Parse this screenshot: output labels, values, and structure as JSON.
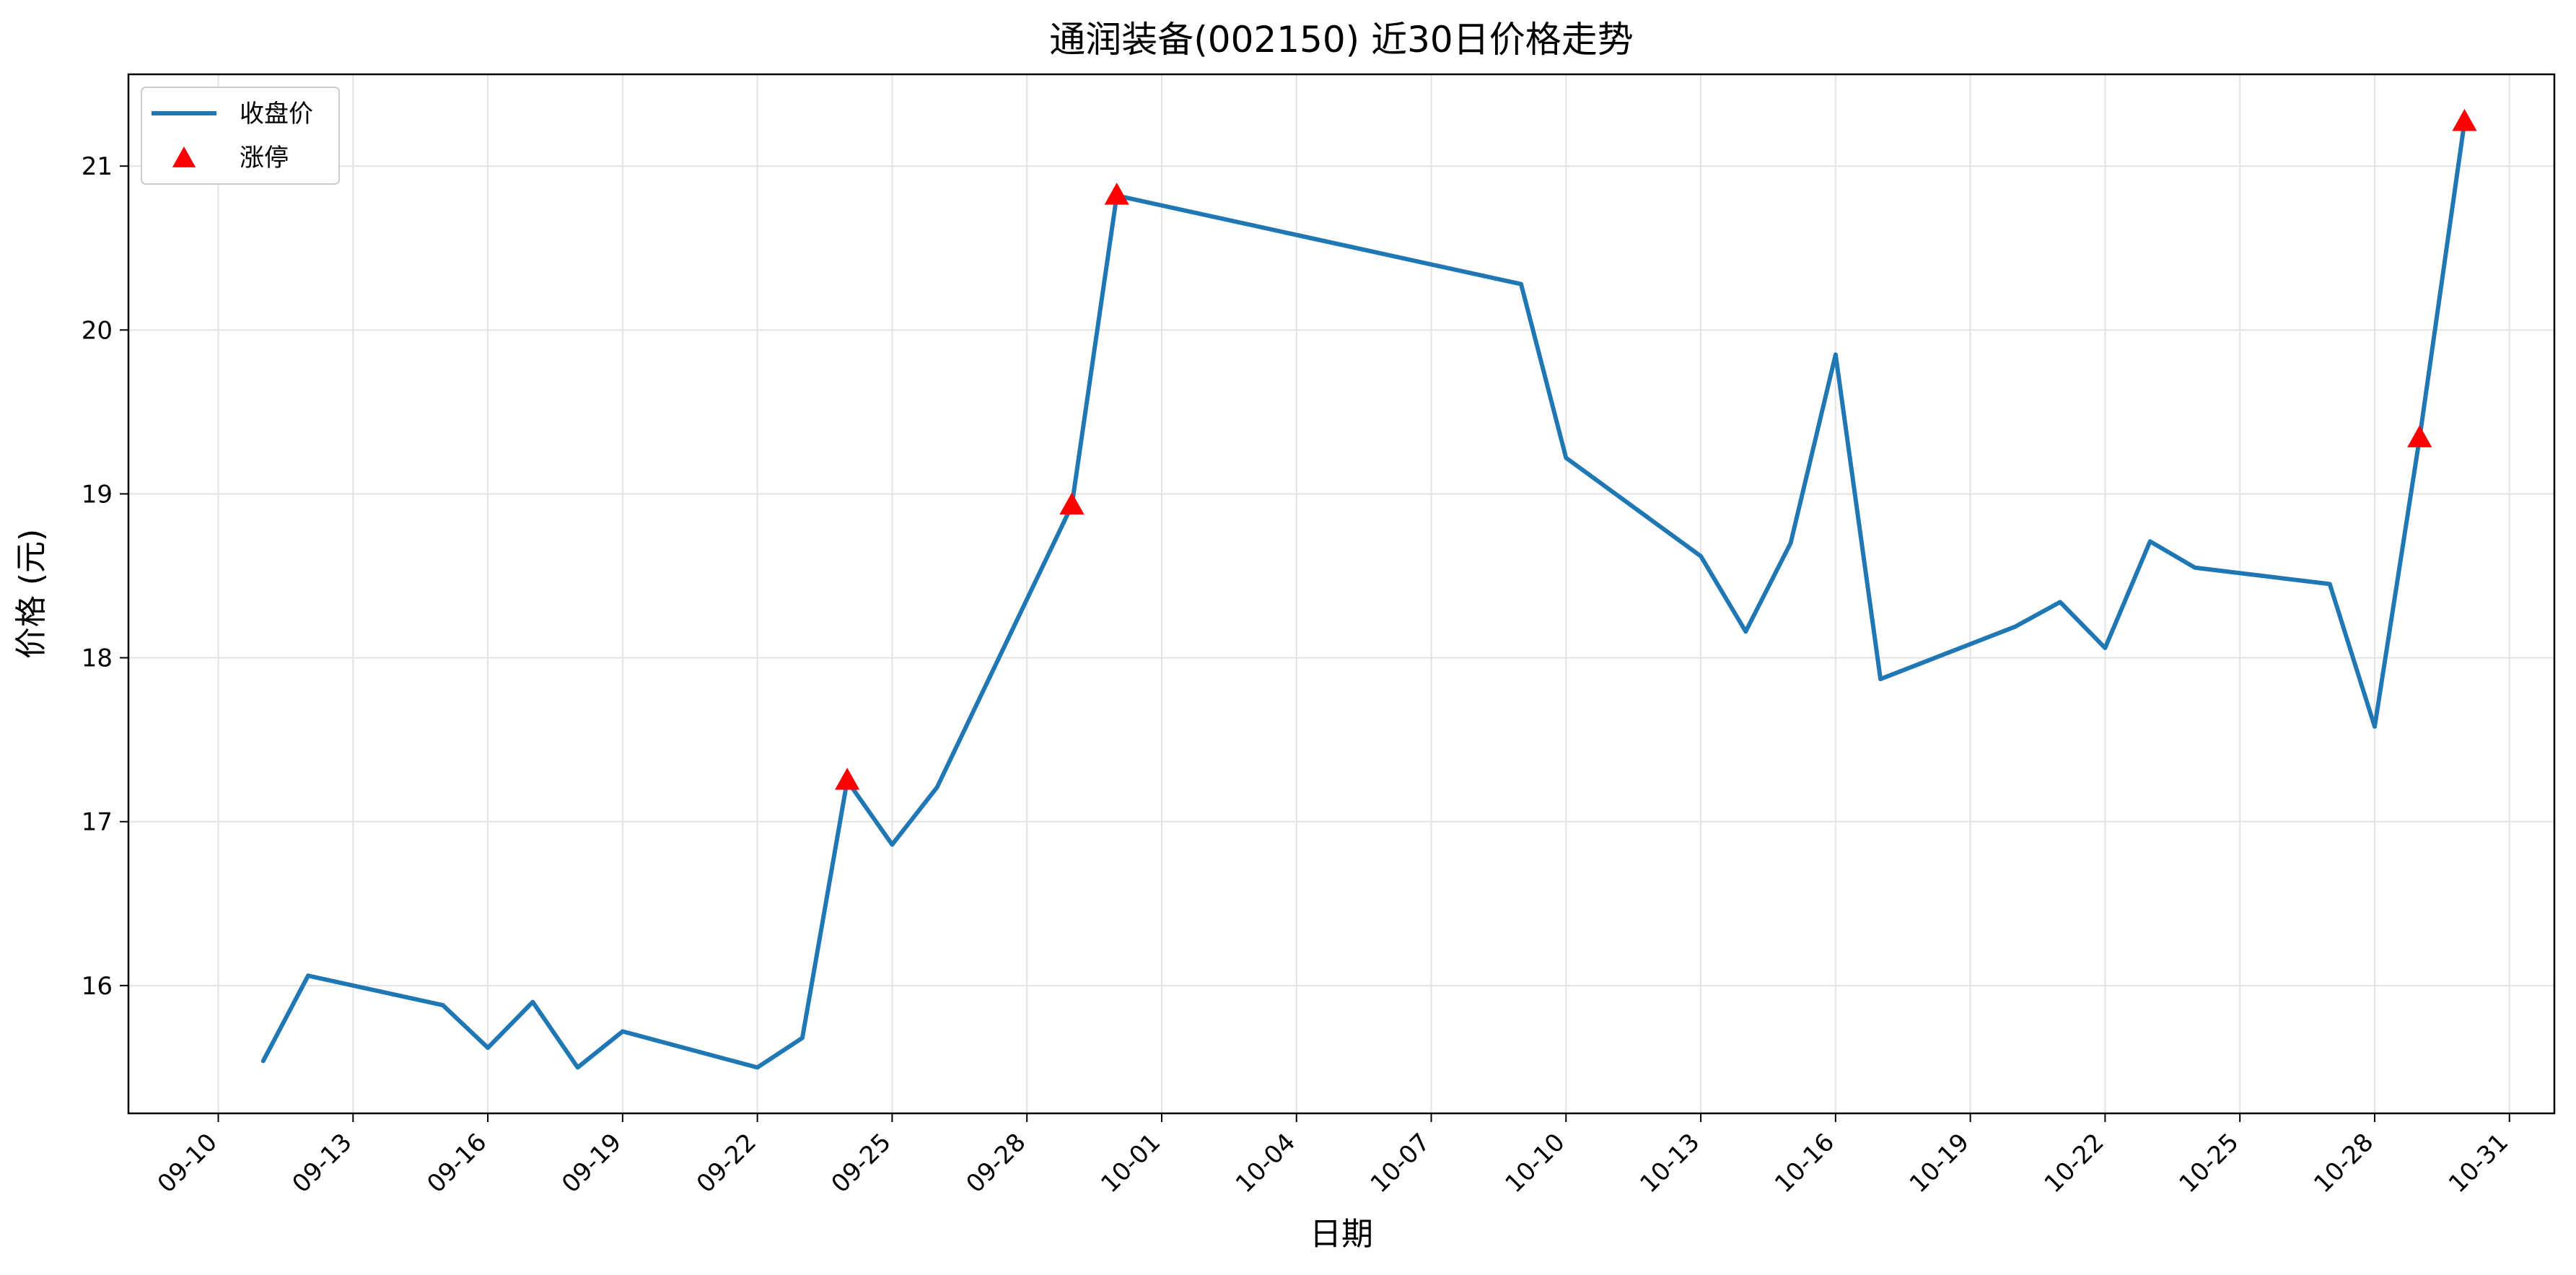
{
  "chart_data": {
    "type": "line",
    "title": "通润装备(002150) 近30日价格走势",
    "xlabel": "日期",
    "ylabel": "价格 (元)",
    "xlim": [
      "2024-09-08",
      "2024-11-01"
    ],
    "ylim": [
      15.22,
      21.56
    ],
    "grid": true,
    "legend_position": "top-left",
    "x_ticks": [
      "2024-09-10",
      "2024-09-13",
      "2024-09-16",
      "2024-09-19",
      "2024-09-22",
      "2024-09-25",
      "2024-09-28",
      "2024-10-01",
      "2024-10-04",
      "2024-10-07",
      "2024-10-10",
      "2024-10-13",
      "2024-10-16",
      "2024-10-19",
      "2024-10-22",
      "2024-10-25",
      "2024-10-28",
      "2024-10-31"
    ],
    "x_tick_labels": [
      "09-10",
      "09-13",
      "09-16",
      "09-19",
      "09-22",
      "09-25",
      "09-28",
      "10-01",
      "10-04",
      "10-07",
      "10-10",
      "10-13",
      "10-16",
      "10-19",
      "10-22",
      "10-25",
      "10-28",
      "10-31"
    ],
    "y_ticks": [
      16,
      17,
      18,
      19,
      20,
      21
    ],
    "y_tick_labels": [
      "16",
      "17",
      "18",
      "19",
      "20",
      "21"
    ],
    "series": [
      {
        "name": "收盘价",
        "kind": "line",
        "color": "#1f77b4",
        "points": [
          {
            "x": "2024-09-11",
            "y": 15.54
          },
          {
            "x": "2024-09-12",
            "y": 16.06
          },
          {
            "x": "2024-09-15",
            "y": 15.88
          },
          {
            "x": "2024-09-16",
            "y": 15.62
          },
          {
            "x": "2024-09-17",
            "y": 15.9
          },
          {
            "x": "2024-09-18",
            "y": 15.5
          },
          {
            "x": "2024-09-19",
            "y": 15.72
          },
          {
            "x": "2024-09-22",
            "y": 15.5
          },
          {
            "x": "2024-09-23",
            "y": 15.68
          },
          {
            "x": "2024-09-24",
            "y": 17.25
          },
          {
            "x": "2024-09-25",
            "y": 16.86
          },
          {
            "x": "2024-09-26",
            "y": 17.21
          },
          {
            "x": "2024-09-29",
            "y": 18.93
          },
          {
            "x": "2024-09-30",
            "y": 20.82
          },
          {
            "x": "2024-10-09",
            "y": 20.28
          },
          {
            "x": "2024-10-10",
            "y": 19.22
          },
          {
            "x": "2024-10-13",
            "y": 18.62
          },
          {
            "x": "2024-10-14",
            "y": 18.16
          },
          {
            "x": "2024-10-15",
            "y": 18.7
          },
          {
            "x": "2024-10-16",
            "y": 19.85
          },
          {
            "x": "2024-10-17",
            "y": 17.87
          },
          {
            "x": "2024-10-20",
            "y": 18.19
          },
          {
            "x": "2024-10-21",
            "y": 18.34
          },
          {
            "x": "2024-10-22",
            "y": 18.06
          },
          {
            "x": "2024-10-23",
            "y": 18.71
          },
          {
            "x": "2024-10-24",
            "y": 18.55
          },
          {
            "x": "2024-10-27",
            "y": 18.45
          },
          {
            "x": "2024-10-28",
            "y": 17.58
          },
          {
            "x": "2024-10-29",
            "y": 19.34
          },
          {
            "x": "2024-10-30",
            "y": 21.27
          }
        ]
      },
      {
        "name": "涨停",
        "kind": "scatter",
        "marker": "triangle",
        "color": "#ff0000",
        "points": [
          {
            "x": "2024-09-24",
            "y": 17.25
          },
          {
            "x": "2024-09-29",
            "y": 18.93
          },
          {
            "x": "2024-09-30",
            "y": 20.82
          },
          {
            "x": "2024-10-29",
            "y": 19.34
          },
          {
            "x": "2024-10-30",
            "y": 21.27
          }
        ]
      }
    ]
  }
}
